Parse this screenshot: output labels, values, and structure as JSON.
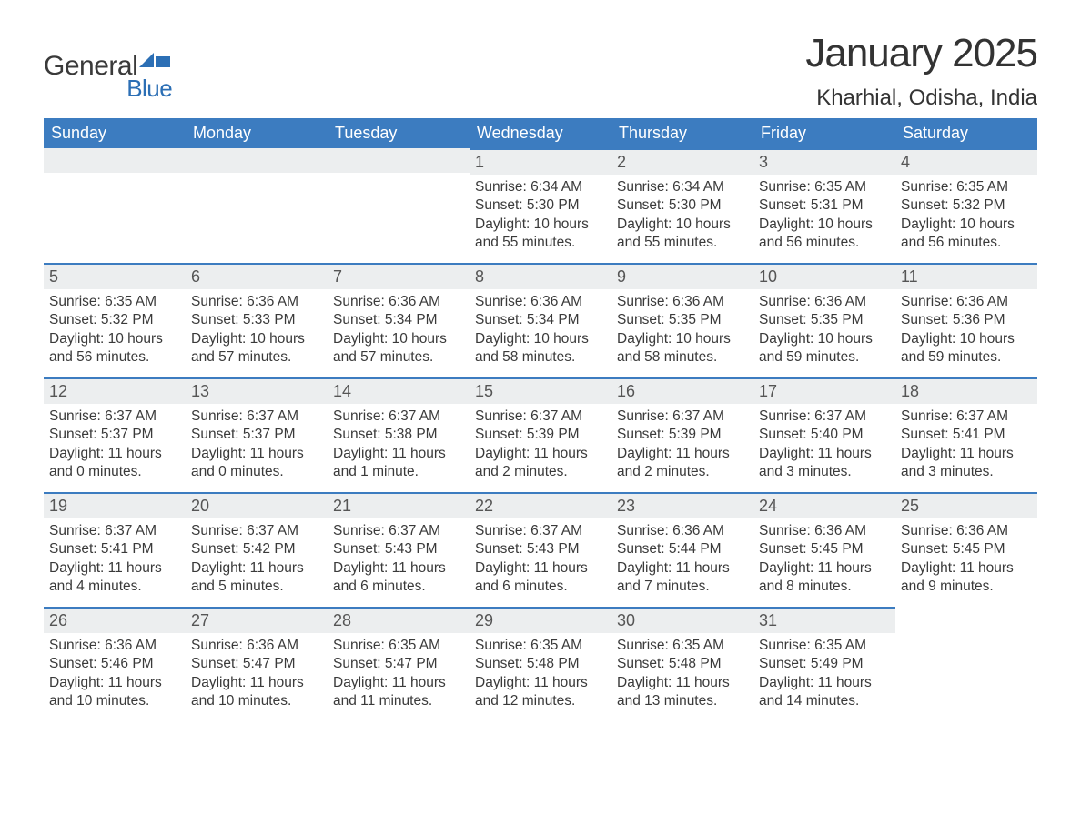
{
  "brand": {
    "general": "General",
    "blue": "Blue"
  },
  "title": {
    "month": "January 2025",
    "location": "Kharhial, Odisha, India"
  },
  "colors": {
    "header_bg": "#3c7cc0",
    "header_text": "#ffffff",
    "daynum_bg": "#eceeef",
    "daynum_border": "#3c7cc0",
    "body_text": "#3a3a3a",
    "page_bg": "#ffffff",
    "brand_blue": "#2c6fb5"
  },
  "dayNames": [
    "Sunday",
    "Monday",
    "Tuesday",
    "Wednesday",
    "Thursday",
    "Friday",
    "Saturday"
  ],
  "weeks": [
    [
      null,
      null,
      null,
      {
        "n": "1",
        "sr": "Sunrise: 6:34 AM",
        "ss": "Sunset: 5:30 PM",
        "dl1": "Daylight: 10 hours",
        "dl2": "and 55 minutes."
      },
      {
        "n": "2",
        "sr": "Sunrise: 6:34 AM",
        "ss": "Sunset: 5:30 PM",
        "dl1": "Daylight: 10 hours",
        "dl2": "and 55 minutes."
      },
      {
        "n": "3",
        "sr": "Sunrise: 6:35 AM",
        "ss": "Sunset: 5:31 PM",
        "dl1": "Daylight: 10 hours",
        "dl2": "and 56 minutes."
      },
      {
        "n": "4",
        "sr": "Sunrise: 6:35 AM",
        "ss": "Sunset: 5:32 PM",
        "dl1": "Daylight: 10 hours",
        "dl2": "and 56 minutes."
      }
    ],
    [
      {
        "n": "5",
        "sr": "Sunrise: 6:35 AM",
        "ss": "Sunset: 5:32 PM",
        "dl1": "Daylight: 10 hours",
        "dl2": "and 56 minutes."
      },
      {
        "n": "6",
        "sr": "Sunrise: 6:36 AM",
        "ss": "Sunset: 5:33 PM",
        "dl1": "Daylight: 10 hours",
        "dl2": "and 57 minutes."
      },
      {
        "n": "7",
        "sr": "Sunrise: 6:36 AM",
        "ss": "Sunset: 5:34 PM",
        "dl1": "Daylight: 10 hours",
        "dl2": "and 57 minutes."
      },
      {
        "n": "8",
        "sr": "Sunrise: 6:36 AM",
        "ss": "Sunset: 5:34 PM",
        "dl1": "Daylight: 10 hours",
        "dl2": "and 58 minutes."
      },
      {
        "n": "9",
        "sr": "Sunrise: 6:36 AM",
        "ss": "Sunset: 5:35 PM",
        "dl1": "Daylight: 10 hours",
        "dl2": "and 58 minutes."
      },
      {
        "n": "10",
        "sr": "Sunrise: 6:36 AM",
        "ss": "Sunset: 5:35 PM",
        "dl1": "Daylight: 10 hours",
        "dl2": "and 59 minutes."
      },
      {
        "n": "11",
        "sr": "Sunrise: 6:36 AM",
        "ss": "Sunset: 5:36 PM",
        "dl1": "Daylight: 10 hours",
        "dl2": "and 59 minutes."
      }
    ],
    [
      {
        "n": "12",
        "sr": "Sunrise: 6:37 AM",
        "ss": "Sunset: 5:37 PM",
        "dl1": "Daylight: 11 hours",
        "dl2": "and 0 minutes."
      },
      {
        "n": "13",
        "sr": "Sunrise: 6:37 AM",
        "ss": "Sunset: 5:37 PM",
        "dl1": "Daylight: 11 hours",
        "dl2": "and 0 minutes."
      },
      {
        "n": "14",
        "sr": "Sunrise: 6:37 AM",
        "ss": "Sunset: 5:38 PM",
        "dl1": "Daylight: 11 hours",
        "dl2": "and 1 minute."
      },
      {
        "n": "15",
        "sr": "Sunrise: 6:37 AM",
        "ss": "Sunset: 5:39 PM",
        "dl1": "Daylight: 11 hours",
        "dl2": "and 2 minutes."
      },
      {
        "n": "16",
        "sr": "Sunrise: 6:37 AM",
        "ss": "Sunset: 5:39 PM",
        "dl1": "Daylight: 11 hours",
        "dl2": "and 2 minutes."
      },
      {
        "n": "17",
        "sr": "Sunrise: 6:37 AM",
        "ss": "Sunset: 5:40 PM",
        "dl1": "Daylight: 11 hours",
        "dl2": "and 3 minutes."
      },
      {
        "n": "18",
        "sr": "Sunrise: 6:37 AM",
        "ss": "Sunset: 5:41 PM",
        "dl1": "Daylight: 11 hours",
        "dl2": "and 3 minutes."
      }
    ],
    [
      {
        "n": "19",
        "sr": "Sunrise: 6:37 AM",
        "ss": "Sunset: 5:41 PM",
        "dl1": "Daylight: 11 hours",
        "dl2": "and 4 minutes."
      },
      {
        "n": "20",
        "sr": "Sunrise: 6:37 AM",
        "ss": "Sunset: 5:42 PM",
        "dl1": "Daylight: 11 hours",
        "dl2": "and 5 minutes."
      },
      {
        "n": "21",
        "sr": "Sunrise: 6:37 AM",
        "ss": "Sunset: 5:43 PM",
        "dl1": "Daylight: 11 hours",
        "dl2": "and 6 minutes."
      },
      {
        "n": "22",
        "sr": "Sunrise: 6:37 AM",
        "ss": "Sunset: 5:43 PM",
        "dl1": "Daylight: 11 hours",
        "dl2": "and 6 minutes."
      },
      {
        "n": "23",
        "sr": "Sunrise: 6:36 AM",
        "ss": "Sunset: 5:44 PM",
        "dl1": "Daylight: 11 hours",
        "dl2": "and 7 minutes."
      },
      {
        "n": "24",
        "sr": "Sunrise: 6:36 AM",
        "ss": "Sunset: 5:45 PM",
        "dl1": "Daylight: 11 hours",
        "dl2": "and 8 minutes."
      },
      {
        "n": "25",
        "sr": "Sunrise: 6:36 AM",
        "ss": "Sunset: 5:45 PM",
        "dl1": "Daylight: 11 hours",
        "dl2": "and 9 minutes."
      }
    ],
    [
      {
        "n": "26",
        "sr": "Sunrise: 6:36 AM",
        "ss": "Sunset: 5:46 PM",
        "dl1": "Daylight: 11 hours",
        "dl2": "and 10 minutes."
      },
      {
        "n": "27",
        "sr": "Sunrise: 6:36 AM",
        "ss": "Sunset: 5:47 PM",
        "dl1": "Daylight: 11 hours",
        "dl2": "and 10 minutes."
      },
      {
        "n": "28",
        "sr": "Sunrise: 6:35 AM",
        "ss": "Sunset: 5:47 PM",
        "dl1": "Daylight: 11 hours",
        "dl2": "and 11 minutes."
      },
      {
        "n": "29",
        "sr": "Sunrise: 6:35 AM",
        "ss": "Sunset: 5:48 PM",
        "dl1": "Daylight: 11 hours",
        "dl2": "and 12 minutes."
      },
      {
        "n": "30",
        "sr": "Sunrise: 6:35 AM",
        "ss": "Sunset: 5:48 PM",
        "dl1": "Daylight: 11 hours",
        "dl2": "and 13 minutes."
      },
      {
        "n": "31",
        "sr": "Sunrise: 6:35 AM",
        "ss": "Sunset: 5:49 PM",
        "dl1": "Daylight: 11 hours",
        "dl2": "and 14 minutes."
      },
      null
    ]
  ]
}
